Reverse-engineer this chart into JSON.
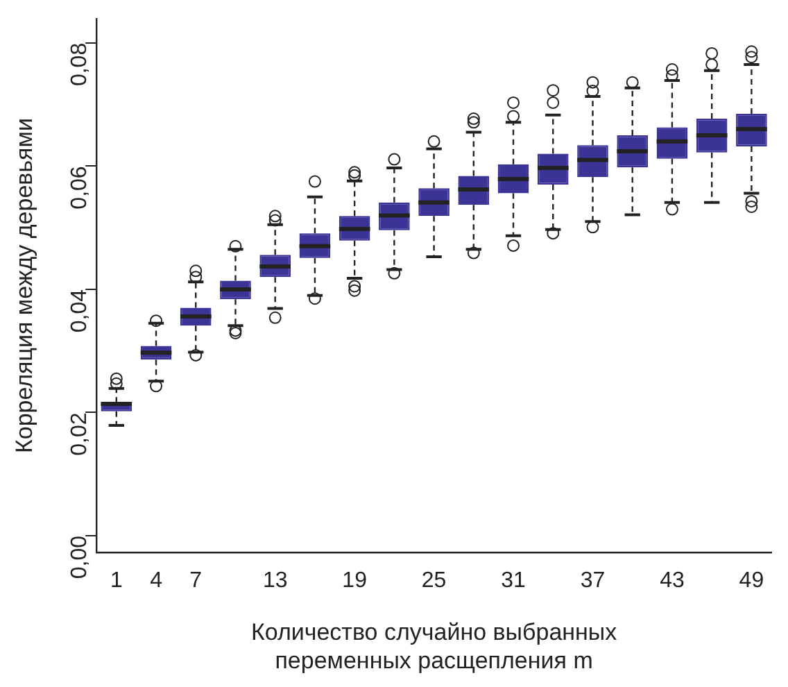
{
  "chart_data": {
    "type": "box",
    "xlabel": "Количество случайно выбранных\nпеременных расщепления m",
    "ylabel": "Корреляция между деревьями",
    "categories": [
      "1",
      "4",
      "7",
      null,
      "13",
      null,
      "19",
      null,
      "25",
      null,
      "31",
      null,
      "37",
      null,
      "43",
      null,
      "49"
    ],
    "color": "#3b3396",
    "ylim": [
      -0.0027,
      0.0839
    ],
    "yticks": [
      {
        "value": 0,
        "label": "0,00"
      },
      {
        "value": 0.02,
        "label": "0,02"
      },
      {
        "value": 0.04,
        "label": "0,04"
      },
      {
        "value": 0.06,
        "label": "0,06"
      },
      {
        "value": 0.08,
        "label": "0,08"
      }
    ],
    "grid": false,
    "boxes": [
      {
        "low": 0.0179,
        "q1": 0.0202,
        "median": 0.0214,
        "q3": 0.0216,
        "high": 0.0239,
        "outliers": [
          0.0247,
          0.0255
        ]
      },
      {
        "low": 0.0251,
        "q1": 0.0286,
        "median": 0.0297,
        "q3": 0.0308,
        "high": 0.0345,
        "outliers": [
          0.0243,
          0.0349
        ]
      },
      {
        "low": 0.0298,
        "q1": 0.0341,
        "median": 0.0356,
        "q3": 0.037,
        "high": 0.0412,
        "outliers": [
          0.0293,
          0.042,
          0.043
        ]
      },
      {
        "low": 0.0341,
        "q1": 0.0384,
        "median": 0.04,
        "q3": 0.0414,
        "high": 0.0465,
        "outliers": [
          0.0333,
          0.0329,
          0.047
        ]
      },
      {
        "low": 0.0369,
        "q1": 0.042,
        "median": 0.0437,
        "q3": 0.0456,
        "high": 0.0505,
        "outliers": [
          0.0354,
          0.0512,
          0.0519
        ]
      },
      {
        "low": 0.039,
        "q1": 0.0451,
        "median": 0.047,
        "q3": 0.0491,
        "high": 0.055,
        "outliers": [
          0.0385,
          0.0575
        ]
      },
      {
        "low": 0.0418,
        "q1": 0.0479,
        "median": 0.0498,
        "q3": 0.0519,
        "high": 0.0576,
        "outliers": [
          0.0405,
          0.0398,
          0.0585,
          0.059
        ]
      },
      {
        "low": 0.0432,
        "q1": 0.0496,
        "median": 0.052,
        "q3": 0.0541,
        "high": 0.0597,
        "outliers": [
          0.0426,
          0.0611
        ]
      },
      {
        "low": 0.0453,
        "q1": 0.0519,
        "median": 0.0541,
        "q3": 0.0564,
        "high": 0.0628,
        "outliers": [
          0.064
        ]
      },
      {
        "low": 0.0465,
        "q1": 0.0537,
        "median": 0.0562,
        "q3": 0.0584,
        "high": 0.0655,
        "outliers": [
          0.0459,
          0.0671,
          0.0677
        ]
      },
      {
        "low": 0.0487,
        "q1": 0.0556,
        "median": 0.0579,
        "q3": 0.0603,
        "high": 0.0671,
        "outliers": [
          0.0471,
          0.0681,
          0.0703
        ]
      },
      {
        "low": 0.0497,
        "q1": 0.057,
        "median": 0.0597,
        "q3": 0.062,
        "high": 0.0683,
        "outliers": [
          0.0491,
          0.0703,
          0.0723
        ]
      },
      {
        "low": 0.051,
        "q1": 0.0582,
        "median": 0.061,
        "q3": 0.0634,
        "high": 0.0713,
        "outliers": [
          0.0501,
          0.0722,
          0.0736
        ]
      },
      {
        "low": 0.0521,
        "q1": 0.0598,
        "median": 0.0624,
        "q3": 0.065,
        "high": 0.0727,
        "outliers": [
          0.0736
        ]
      },
      {
        "low": 0.0541,
        "q1": 0.0612,
        "median": 0.064,
        "q3": 0.0663,
        "high": 0.0739,
        "outliers": [
          0.053,
          0.0747,
          0.0757
        ]
      },
      {
        "low": 0.0541,
        "q1": 0.0622,
        "median": 0.065,
        "q3": 0.0677,
        "high": 0.0755,
        "outliers": [
          0.0765,
          0.0783
        ]
      },
      {
        "low": 0.0556,
        "q1": 0.0632,
        "median": 0.066,
        "q3": 0.0685,
        "high": 0.0765,
        "outliers": [
          0.0543,
          0.0534,
          0.0777,
          0.0786
        ]
      }
    ]
  }
}
